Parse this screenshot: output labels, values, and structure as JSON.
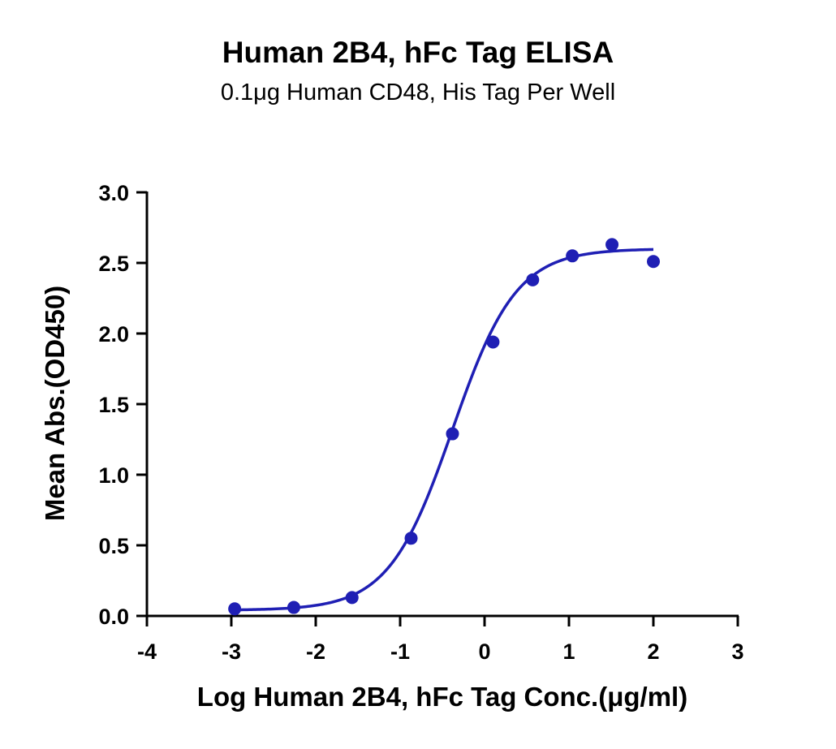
{
  "chart_data": {
    "type": "scatter",
    "title": "Human 2B4, hFc Tag ELISA",
    "subtitle": "0.1μg Human CD48, His Tag Per Well",
    "xlabel": "Log Human 2B4, hFc Tag Conc.(μg/ml)",
    "ylabel": "Mean Abs.(OD450)",
    "xlim": [
      -4,
      3
    ],
    "ylim": [
      0,
      3
    ],
    "x_ticks": [
      "-4",
      "-3",
      "-2",
      "-1",
      "0",
      "1",
      "2",
      "3"
    ],
    "y_ticks": [
      "0.0",
      "0.5",
      "1.0",
      "1.5",
      "2.0",
      "2.5",
      "3.0"
    ],
    "grid": false,
    "color": "#1f1fb4",
    "series": [
      {
        "x": [
          -2.96,
          -2.26,
          -1.57,
          -0.87,
          -0.38,
          0.1,
          0.57,
          1.04,
          1.51,
          2.0
        ],
        "y": [
          0.05,
          0.06,
          0.13,
          0.55,
          1.29,
          1.94,
          2.38,
          2.55,
          2.63,
          2.51
        ]
      }
    ],
    "fit_curve": {
      "model": "4PL",
      "bottom": 0.04,
      "top": 2.6,
      "logEC50": -0.38,
      "hill": 1.15
    }
  }
}
